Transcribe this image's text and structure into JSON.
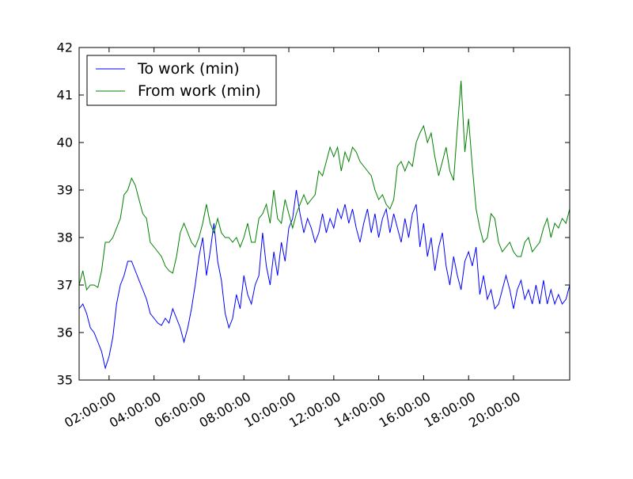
{
  "chart_data": {
    "type": "line",
    "title": "",
    "xlabel": "",
    "ylabel": "",
    "xlim": [
      "00:40:00",
      "22:30:00"
    ],
    "ylim": [
      35,
      42
    ],
    "x_ticks": [
      "02:00:00",
      "04:00:00",
      "06:00:00",
      "08:00:00",
      "10:00:00",
      "12:00:00",
      "14:00:00",
      "16:00:00",
      "18:00:00",
      "20:00:00"
    ],
    "y_ticks": [
      35,
      36,
      37,
      38,
      39,
      40,
      41,
      42
    ],
    "grid": false,
    "legend": "upper-left",
    "series": [
      {
        "name": "To work (min)",
        "color": "#0000ff",
        "points": [
          [
            "00:40:00",
            36.5
          ],
          [
            "00:50:00",
            36.6
          ],
          [
            "01:00:00",
            36.4
          ],
          [
            "01:10:00",
            36.1
          ],
          [
            "01:20:00",
            36.0
          ],
          [
            "01:30:00",
            35.8
          ],
          [
            "01:40:00",
            35.6
          ],
          [
            "01:50:00",
            35.25
          ],
          [
            "02:00:00",
            35.5
          ],
          [
            "02:10:00",
            35.9
          ],
          [
            "02:20:00",
            36.6
          ],
          [
            "02:30:00",
            37.0
          ],
          [
            "02:40:00",
            37.2
          ],
          [
            "02:50:00",
            37.5
          ],
          [
            "03:00:00",
            37.5
          ],
          [
            "03:10:00",
            37.3
          ],
          [
            "03:20:00",
            37.1
          ],
          [
            "03:30:00",
            36.9
          ],
          [
            "03:40:00",
            36.7
          ],
          [
            "03:50:00",
            36.4
          ],
          [
            "04:00:00",
            36.3
          ],
          [
            "04:10:00",
            36.2
          ],
          [
            "04:20:00",
            36.15
          ],
          [
            "04:30:00",
            36.3
          ],
          [
            "04:40:00",
            36.2
          ],
          [
            "04:50:00",
            36.5
          ],
          [
            "05:00:00",
            36.3
          ],
          [
            "05:10:00",
            36.1
          ],
          [
            "05:20:00",
            35.8
          ],
          [
            "05:30:00",
            36.1
          ],
          [
            "05:40:00",
            36.5
          ],
          [
            "05:50:00",
            37.0
          ],
          [
            "06:00:00",
            37.6
          ],
          [
            "06:10:00",
            38.0
          ],
          [
            "06:20:00",
            37.2
          ],
          [
            "06:30:00",
            37.7
          ],
          [
            "06:40:00",
            38.3
          ],
          [
            "06:50:00",
            37.5
          ],
          [
            "07:00:00",
            37.1
          ],
          [
            "07:10:00",
            36.4
          ],
          [
            "07:20:00",
            36.1
          ],
          [
            "07:30:00",
            36.3
          ],
          [
            "07:40:00",
            36.8
          ],
          [
            "07:50:00",
            36.5
          ],
          [
            "08:00:00",
            37.2
          ],
          [
            "08:10:00",
            36.8
          ],
          [
            "08:20:00",
            36.6
          ],
          [
            "08:30:00",
            37.0
          ],
          [
            "08:40:00",
            37.2
          ],
          [
            "08:50:00",
            38.1
          ],
          [
            "09:00:00",
            37.4
          ],
          [
            "09:10:00",
            37.0
          ],
          [
            "09:20:00",
            37.7
          ],
          [
            "09:30:00",
            37.2
          ],
          [
            "09:40:00",
            37.9
          ],
          [
            "09:50:00",
            37.5
          ],
          [
            "10:00:00",
            38.2
          ],
          [
            "10:10:00",
            38.4
          ],
          [
            "10:20:00",
            39.0
          ],
          [
            "10:30:00",
            38.5
          ],
          [
            "10:40:00",
            38.1
          ],
          [
            "10:50:00",
            38.4
          ],
          [
            "11:00:00",
            38.2
          ],
          [
            "11:10:00",
            37.9
          ],
          [
            "11:20:00",
            38.1
          ],
          [
            "11:30:00",
            38.5
          ],
          [
            "11:40:00",
            38.1
          ],
          [
            "11:50:00",
            38.4
          ],
          [
            "12:00:00",
            38.2
          ],
          [
            "12:10:00",
            38.6
          ],
          [
            "12:20:00",
            38.4
          ],
          [
            "12:30:00",
            38.7
          ],
          [
            "12:40:00",
            38.3
          ],
          [
            "12:50:00",
            38.6
          ],
          [
            "13:00:00",
            38.2
          ],
          [
            "13:10:00",
            37.9
          ],
          [
            "13:20:00",
            38.3
          ],
          [
            "13:30:00",
            38.6
          ],
          [
            "13:40:00",
            38.1
          ],
          [
            "13:50:00",
            38.5
          ],
          [
            "14:00:00",
            38.0
          ],
          [
            "14:10:00",
            38.4
          ],
          [
            "14:20:00",
            38.6
          ],
          [
            "14:30:00",
            38.1
          ],
          [
            "14:40:00",
            38.5
          ],
          [
            "14:50:00",
            38.2
          ],
          [
            "15:00:00",
            37.9
          ],
          [
            "15:10:00",
            38.4
          ],
          [
            "15:20:00",
            38.0
          ],
          [
            "15:30:00",
            38.5
          ],
          [
            "15:40:00",
            38.7
          ],
          [
            "15:50:00",
            37.8
          ],
          [
            "16:00:00",
            38.3
          ],
          [
            "16:10:00",
            37.6
          ],
          [
            "16:20:00",
            38.0
          ],
          [
            "16:30:00",
            37.3
          ],
          [
            "16:40:00",
            37.8
          ],
          [
            "16:50:00",
            38.1
          ],
          [
            "17:00:00",
            37.4
          ],
          [
            "17:10:00",
            37.0
          ],
          [
            "17:20:00",
            37.6
          ],
          [
            "17:30:00",
            37.2
          ],
          [
            "17:40:00",
            36.9
          ],
          [
            "17:50:00",
            37.5
          ],
          [
            "18:00:00",
            37.7
          ],
          [
            "18:10:00",
            37.4
          ],
          [
            "18:20:00",
            37.8
          ],
          [
            "18:30:00",
            36.8
          ],
          [
            "18:40:00",
            37.2
          ],
          [
            "18:50:00",
            36.7
          ],
          [
            "19:00:00",
            36.9
          ],
          [
            "19:10:00",
            36.5
          ],
          [
            "19:20:00",
            36.6
          ],
          [
            "19:30:00",
            36.9
          ],
          [
            "19:40:00",
            37.2
          ],
          [
            "19:50:00",
            36.9
          ],
          [
            "20:00:00",
            36.5
          ],
          [
            "20:10:00",
            36.9
          ],
          [
            "20:20:00",
            37.1
          ],
          [
            "20:30:00",
            36.7
          ],
          [
            "20:40:00",
            36.9
          ],
          [
            "20:50:00",
            36.6
          ],
          [
            "21:00:00",
            37.0
          ],
          [
            "21:10:00",
            36.6
          ],
          [
            "21:20:00",
            37.1
          ],
          [
            "21:30:00",
            36.6
          ],
          [
            "21:40:00",
            36.9
          ],
          [
            "21:50:00",
            36.6
          ],
          [
            "22:00:00",
            36.8
          ],
          [
            "22:10:00",
            36.6
          ],
          [
            "22:20:00",
            36.7
          ],
          [
            "22:30:00",
            37.0
          ]
        ]
      },
      {
        "name": "From work (min)",
        "color": "#008000",
        "points": [
          [
            "00:40:00",
            37.0
          ],
          [
            "00:50:00",
            37.3
          ],
          [
            "01:00:00",
            36.9
          ],
          [
            "01:10:00",
            37.0
          ],
          [
            "01:20:00",
            37.0
          ],
          [
            "01:30:00",
            36.95
          ],
          [
            "01:40:00",
            37.3
          ],
          [
            "01:50:00",
            37.9
          ],
          [
            "02:00:00",
            37.9
          ],
          [
            "02:10:00",
            38.0
          ],
          [
            "02:20:00",
            38.2
          ],
          [
            "02:30:00",
            38.4
          ],
          [
            "02:40:00",
            38.9
          ],
          [
            "02:50:00",
            39.0
          ],
          [
            "03:00:00",
            39.25
          ],
          [
            "03:10:00",
            39.1
          ],
          [
            "03:20:00",
            38.8
          ],
          [
            "03:30:00",
            38.5
          ],
          [
            "03:40:00",
            38.4
          ],
          [
            "03:50:00",
            37.9
          ],
          [
            "04:00:00",
            37.8
          ],
          [
            "04:10:00",
            37.7
          ],
          [
            "04:20:00",
            37.6
          ],
          [
            "04:30:00",
            37.4
          ],
          [
            "04:40:00",
            37.3
          ],
          [
            "04:50:00",
            37.25
          ],
          [
            "05:00:00",
            37.6
          ],
          [
            "05:10:00",
            38.1
          ],
          [
            "05:20:00",
            38.3
          ],
          [
            "05:30:00",
            38.1
          ],
          [
            "05:40:00",
            37.9
          ],
          [
            "05:50:00",
            37.8
          ],
          [
            "06:00:00",
            38.0
          ],
          [
            "06:10:00",
            38.3
          ],
          [
            "06:20:00",
            38.7
          ],
          [
            "06:30:00",
            38.3
          ],
          [
            "06:40:00",
            38.1
          ],
          [
            "06:50:00",
            38.4
          ],
          [
            "07:00:00",
            38.1
          ],
          [
            "07:10:00",
            38.0
          ],
          [
            "07:20:00",
            38.0
          ],
          [
            "07:30:00",
            37.9
          ],
          [
            "07:40:00",
            38.0
          ],
          [
            "07:50:00",
            37.8
          ],
          [
            "08:00:00",
            38.0
          ],
          [
            "08:10:00",
            38.3
          ],
          [
            "08:20:00",
            37.9
          ],
          [
            "08:30:00",
            37.9
          ],
          [
            "08:40:00",
            38.4
          ],
          [
            "08:50:00",
            38.5
          ],
          [
            "09:00:00",
            38.7
          ],
          [
            "09:10:00",
            38.3
          ],
          [
            "09:20:00",
            39.0
          ],
          [
            "09:30:00",
            38.4
          ],
          [
            "09:40:00",
            38.3
          ],
          [
            "09:50:00",
            38.8
          ],
          [
            "10:00:00",
            38.5
          ],
          [
            "10:10:00",
            38.2
          ],
          [
            "10:20:00",
            38.5
          ],
          [
            "10:30:00",
            38.7
          ],
          [
            "10:40:00",
            38.9
          ],
          [
            "10:50:00",
            38.7
          ],
          [
            "11:00:00",
            38.8
          ],
          [
            "11:10:00",
            38.9
          ],
          [
            "11:20:00",
            39.4
          ],
          [
            "11:30:00",
            39.3
          ],
          [
            "11:40:00",
            39.6
          ],
          [
            "11:50:00",
            39.9
          ],
          [
            "12:00:00",
            39.7
          ],
          [
            "12:10:00",
            39.9
          ],
          [
            "12:20:00",
            39.4
          ],
          [
            "12:30:00",
            39.8
          ],
          [
            "12:40:00",
            39.6
          ],
          [
            "12:50:00",
            39.9
          ],
          [
            "13:00:00",
            39.8
          ],
          [
            "13:10:00",
            39.6
          ],
          [
            "13:20:00",
            39.5
          ],
          [
            "13:30:00",
            39.4
          ],
          [
            "13:40:00",
            39.3
          ],
          [
            "13:50:00",
            39.0
          ],
          [
            "14:00:00",
            38.8
          ],
          [
            "14:10:00",
            38.9
          ],
          [
            "14:20:00",
            38.7
          ],
          [
            "14:30:00",
            38.6
          ],
          [
            "14:40:00",
            38.8
          ],
          [
            "14:50:00",
            39.5
          ],
          [
            "15:00:00",
            39.6
          ],
          [
            "15:10:00",
            39.4
          ],
          [
            "15:20:00",
            39.6
          ],
          [
            "15:30:00",
            39.5
          ],
          [
            "15:40:00",
            40.0
          ],
          [
            "15:50:00",
            40.2
          ],
          [
            "16:00:00",
            40.35
          ],
          [
            "16:10:00",
            40.0
          ],
          [
            "16:20:00",
            40.2
          ],
          [
            "16:30:00",
            39.7
          ],
          [
            "16:40:00",
            39.3
          ],
          [
            "16:50:00",
            39.6
          ],
          [
            "17:00:00",
            39.9
          ],
          [
            "17:10:00",
            39.4
          ],
          [
            "17:20:00",
            39.2
          ],
          [
            "17:30:00",
            40.3
          ],
          [
            "17:40:00",
            41.3
          ],
          [
            "17:50:00",
            39.8
          ],
          [
            "18:00:00",
            40.5
          ],
          [
            "18:10:00",
            39.5
          ],
          [
            "18:20:00",
            38.6
          ],
          [
            "18:30:00",
            38.2
          ],
          [
            "18:40:00",
            37.9
          ],
          [
            "18:50:00",
            38.0
          ],
          [
            "19:00:00",
            38.5
          ],
          [
            "19:10:00",
            38.4
          ],
          [
            "19:20:00",
            37.9
          ],
          [
            "19:30:00",
            37.7
          ],
          [
            "19:40:00",
            37.8
          ],
          [
            "19:50:00",
            37.9
          ],
          [
            "20:00:00",
            37.7
          ],
          [
            "20:10:00",
            37.6
          ],
          [
            "20:20:00",
            37.6
          ],
          [
            "20:30:00",
            37.9
          ],
          [
            "20:40:00",
            38.0
          ],
          [
            "20:50:00",
            37.7
          ],
          [
            "21:00:00",
            37.8
          ],
          [
            "21:10:00",
            37.9
          ],
          [
            "21:20:00",
            38.2
          ],
          [
            "21:30:00",
            38.4
          ],
          [
            "21:40:00",
            38.0
          ],
          [
            "21:50:00",
            38.3
          ],
          [
            "22:00:00",
            38.2
          ],
          [
            "22:10:00",
            38.4
          ],
          [
            "22:20:00",
            38.3
          ],
          [
            "22:30:00",
            38.6
          ]
        ]
      }
    ]
  }
}
